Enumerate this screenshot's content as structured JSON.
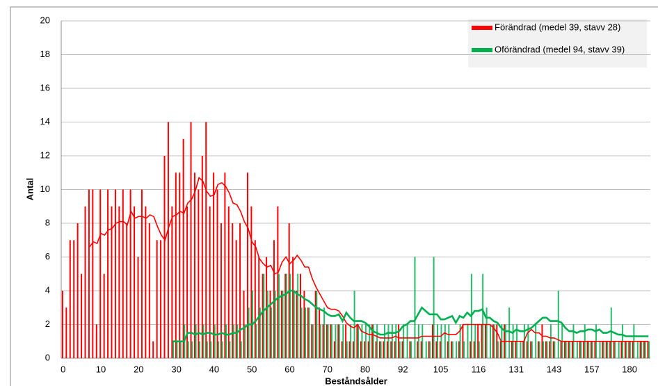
{
  "chart_data": {
    "type": "bar",
    "xlabel": "Beståndsålder",
    "ylabel": "Antal",
    "categories": [
      "0",
      null,
      null,
      null,
      null,
      null,
      null,
      null,
      null,
      null,
      "10",
      null,
      null,
      null,
      null,
      null,
      null,
      null,
      null,
      null,
      "20",
      null,
      null,
      null,
      null,
      null,
      null,
      null,
      null,
      null,
      "30",
      null,
      null,
      null,
      null,
      null,
      null,
      null,
      null,
      null,
      "40",
      null,
      null,
      null,
      null,
      null,
      null,
      null,
      null,
      null,
      "50",
      null,
      null,
      null,
      null,
      null,
      null,
      null,
      null,
      null,
      "60",
      null,
      null,
      null,
      null,
      null,
      null,
      null,
      null,
      null,
      "70",
      null,
      null,
      null,
      null,
      null,
      null,
      null,
      null,
      null,
      "80",
      null,
      null,
      null,
      null,
      null,
      null,
      null,
      null,
      null,
      "92",
      null,
      null,
      null,
      null,
      null,
      null,
      null,
      null,
      null,
      "105",
      null,
      null,
      null,
      null,
      null,
      null,
      null,
      null,
      null,
      "116",
      null,
      null,
      null,
      null,
      null,
      null,
      null,
      null,
      null,
      "131",
      null,
      null,
      null,
      null,
      null,
      null,
      null,
      null,
      null,
      "143",
      null,
      null,
      null,
      null,
      null,
      null,
      null,
      null,
      null,
      "157",
      null,
      null,
      null,
      null,
      null,
      null,
      null,
      null,
      null,
      "180",
      null,
      null,
      null,
      null,
      null
    ],
    "series": [
      {
        "name": "Förändrad (medel 39, stavv 28)",
        "color": "#ff0000",
        "values": [
          4,
          3,
          7,
          7,
          8,
          5,
          9,
          10,
          10,
          2,
          10,
          5,
          10,
          9,
          10,
          9,
          10,
          8,
          10,
          9,
          6,
          10,
          9,
          8,
          1,
          7,
          7,
          12,
          14,
          9,
          11,
          11,
          13,
          9,
          14,
          11,
          10,
          12,
          14,
          9,
          11,
          10,
          8,
          11,
          9,
          8,
          7,
          8,
          4,
          11,
          9,
          7,
          6,
          5,
          6,
          4,
          7,
          9,
          4,
          5,
          8,
          6,
          4,
          5,
          4,
          3,
          2,
          4,
          3,
          2,
          2,
          2,
          1,
          2,
          1,
          2,
          1,
          1,
          2,
          1,
          1,
          1,
          2,
          1,
          1,
          1,
          1,
          1,
          1,
          2,
          1,
          null,
          1,
          null,
          1,
          1,
          null,
          1,
          2,
          1,
          1,
          null,
          1,
          1,
          null,
          1,
          2,
          null,
          1,
          1,
          2,
          2,
          2,
          null,
          2,
          2,
          1,
          2,
          null,
          1,
          1,
          null,
          1,
          1,
          1,
          null,
          1,
          2,
          1,
          1,
          1,
          null,
          1,
          1,
          1,
          1,
          null,
          1,
          1,
          1,
          1,
          1,
          null,
          1,
          1,
          1,
          1,
          null,
          1,
          1,
          1,
          1,
          null,
          1,
          1,
          1
        ],
        "trend": [
          null,
          null,
          null,
          null,
          null,
          null,
          null,
          6.6,
          6.9,
          6.8,
          7.4,
          7.3,
          7.6,
          7.7,
          8,
          8.1,
          8.1,
          7.9,
          8.7,
          8.3,
          8.4,
          8.4,
          8.3,
          8.5,
          8.4,
          7.8,
          7.3,
          7,
          7.8,
          8.4,
          8.5,
          8.7,
          8.6,
          9.2,
          9.4,
          9.9,
          10.7,
          10.5,
          9.9,
          9.6,
          9.7,
          10.3,
          10.4,
          10.2,
          9.8,
          9.2,
          9.1,
          8.7,
          8.1,
          7.7,
          6.9,
          6.6,
          5.9,
          5.6,
          5.4,
          5.5,
          5,
          5.1,
          5.7,
          6,
          5.6,
          5.8,
          6.1,
          5.8,
          5.4,
          5.4,
          4.7,
          4.2,
          3.8,
          3.4,
          3,
          2.9,
          2.9,
          2.8,
          2.5,
          2.1,
          1.9,
          1.8,
          2,
          1.6,
          1.5,
          1.4,
          1.4,
          1.3,
          1.2,
          1.2,
          1.2,
          1.2,
          1.3,
          1.2,
          1.2,
          1.2,
          1.2,
          1.2,
          1.2,
          1.3,
          1.3,
          1.3,
          1.3,
          1.3,
          1.3,
          1.5,
          1.4,
          1.4,
          1.4,
          1.6,
          2,
          2,
          2,
          2,
          2,
          2,
          2,
          2,
          1.8,
          1.5,
          1,
          1,
          1,
          1,
          1,
          1,
          1,
          1.5,
          1.7,
          1.5,
          1.5,
          1.3,
          1.3,
          1.2,
          1.2,
          1.1,
          1,
          1,
          1,
          1,
          1,
          1,
          1,
          1,
          1,
          1,
          1,
          1,
          1,
          1,
          1,
          1,
          1,
          1,
          1,
          1,
          1,
          1,
          1,
          1
        ]
      },
      {
        "name": "Oförändrad (medel 94, stavv 39)",
        "color": "#00b050",
        "values": [
          null,
          null,
          null,
          null,
          null,
          null,
          null,
          null,
          null,
          null,
          null,
          null,
          null,
          null,
          null,
          null,
          null,
          null,
          null,
          null,
          null,
          null,
          null,
          null,
          null,
          null,
          null,
          null,
          null,
          1,
          1,
          1,
          2,
          1,
          1,
          2,
          1,
          2,
          1,
          1,
          2,
          1,
          1,
          2,
          1,
          2,
          2,
          1,
          2,
          3,
          4,
          2,
          3,
          5,
          4,
          3,
          4,
          5,
          4,
          5,
          5,
          4,
          5,
          3,
          3,
          3,
          2,
          4,
          2,
          3,
          2,
          2,
          2,
          2,
          2,
          1,
          2,
          4,
          2,
          2,
          2,
          2,
          2,
          2,
          1,
          2,
          2,
          2,
          2,
          1,
          2,
          2,
          1,
          6,
          2,
          2,
          1,
          1,
          6,
          2,
          2,
          2,
          2,
          1,
          1,
          2,
          1,
          2,
          5,
          2,
          1,
          5,
          3,
          2,
          2,
          1,
          2,
          2,
          3,
          2,
          2,
          1,
          2,
          2,
          1,
          2,
          1,
          1,
          1,
          2,
          1,
          4,
          2,
          1,
          1,
          2,
          1,
          1,
          2,
          1,
          1,
          2,
          1,
          1,
          1,
          3,
          1,
          1,
          2,
          1,
          1,
          2,
          1,
          1,
          1,
          1
        ],
        "trend": [
          null,
          null,
          null,
          null,
          null,
          null,
          null,
          null,
          null,
          null,
          null,
          null,
          null,
          null,
          null,
          null,
          null,
          null,
          null,
          null,
          null,
          null,
          null,
          null,
          null,
          null,
          null,
          null,
          null,
          1,
          1,
          1,
          1,
          1.5,
          1.5,
          1.4,
          1.5,
          1.4,
          1.5,
          1.5,
          1.4,
          1.4,
          1.5,
          1.4,
          1.4,
          1.5,
          1.5,
          1.7,
          1.8,
          2,
          2,
          2.2,
          2.5,
          2.8,
          3,
          3.2,
          3.4,
          3.6,
          3.7,
          3.8,
          4,
          4,
          3.8,
          3.7,
          3.5,
          3.4,
          3.2,
          3,
          2.9,
          2.8,
          2.6,
          2.5,
          2.5,
          2.6,
          2.2,
          2.7,
          2.4,
          2.2,
          2.2,
          2.2,
          2.1,
          1.9,
          1.6,
          1.5,
          1.4,
          1.4,
          1.5,
          1.5,
          1.5,
          1.6,
          1.9,
          2,
          2.2,
          2.2,
          2.6,
          3,
          2.8,
          2.6,
          2.6,
          2.6,
          2.3,
          2.3,
          2.4,
          2.5,
          2.1,
          2.5,
          2.4,
          2.7,
          2.5,
          2.8,
          2.8,
          2.9,
          2.4,
          2.4,
          2.2,
          2.1,
          1.8,
          1.6,
          1.6,
          1.5,
          1.7,
          1.6,
          1.6,
          1.7,
          1.8,
          2,
          2.2,
          2.4,
          2.4,
          2.2,
          2.2,
          2.2,
          2.1,
          1.8,
          1.6,
          1.6,
          1.5,
          1.6,
          1.6,
          1.7,
          1.7,
          1.6,
          1.7,
          1.5,
          1.5,
          1.6,
          1.5,
          1.4,
          1.4,
          1.3,
          1.3,
          1.3,
          1.3,
          1.3,
          1.3,
          1.3
        ]
      }
    ],
    "ylim": [
      0,
      20
    ],
    "yticks": [
      0,
      2,
      4,
      6,
      8,
      10,
      12,
      14,
      16,
      18,
      20
    ],
    "grid": true,
    "legend": "upper right"
  }
}
